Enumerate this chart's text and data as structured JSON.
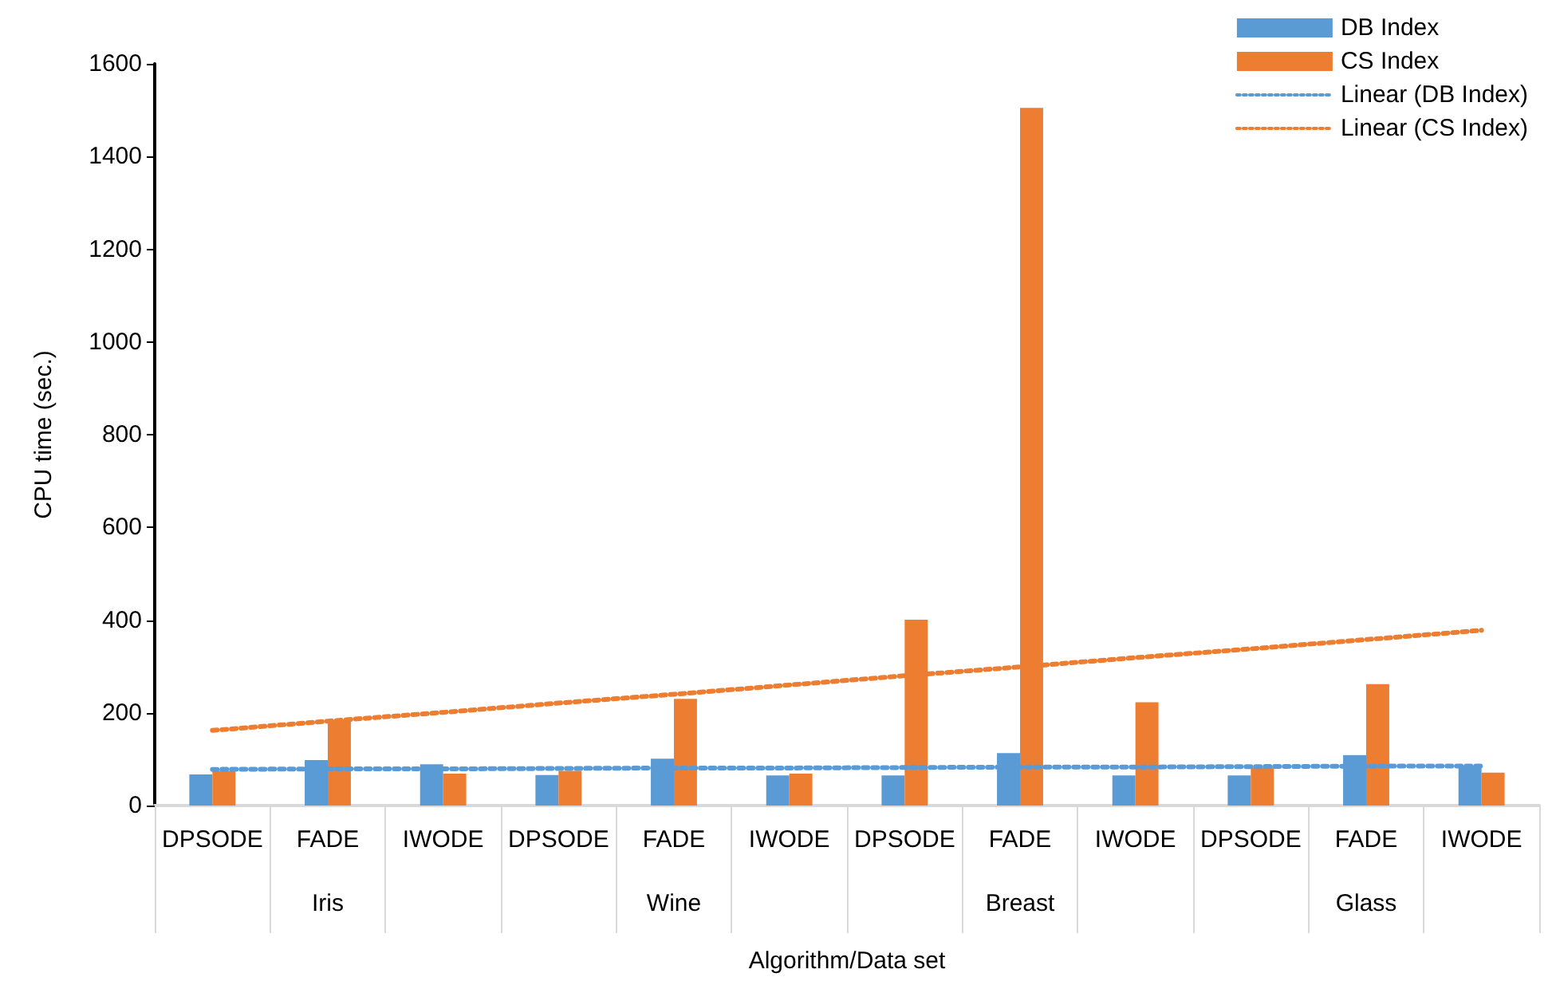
{
  "chart_data": {
    "type": "bar",
    "xlabel": "Algorithm/Data set",
    "ylabel": "CPU time (sec.)",
    "categories": [
      "DPSODE",
      "FADE",
      "IWODE",
      "DPSODE",
      "FADE",
      "IWODE",
      "DPSODE",
      "FADE",
      "IWODE",
      "DPSODE",
      "FADE",
      "IWODE"
    ],
    "annotations": [
      "Iris",
      "Wine",
      "Breast",
      "Glass"
    ],
    "series": [
      {
        "name": "DB Index",
        "color": "#5b9bd5",
        "values": [
          67,
          98,
          89,
          66,
          101,
          65,
          65,
          113,
          65,
          65,
          109,
          86
        ]
      },
      {
        "name": "CS Index",
        "color": "#ed7d31",
        "values": [
          75,
          184,
          69,
          75,
          230,
          69,
          401,
          1505,
          223,
          82,
          262,
          71
        ]
      },
      {
        "name": "Linear (DB Index)",
        "type": "line",
        "line_style": "dotted",
        "color": "#5b9bd5",
        "values": [
          78,
          79,
          79,
          80,
          81,
          81,
          82,
          83,
          83,
          84,
          85,
          85
        ]
      },
      {
        "name": "Linear (CS Index)",
        "type": "line",
        "line_style": "dotted",
        "color": "#ed7d31",
        "values": [
          162,
          182,
          201,
          221,
          240,
          260,
          280,
          299,
          319,
          338,
          358,
          378
        ]
      }
    ],
    "ylim": [
      0,
      1600
    ],
    "yticks": [
      0,
      200,
      400,
      600,
      800,
      {
        "value": 1000,
        "label": "1000"
      },
      {
        "value": 1200,
        "label": "1200"
      },
      {
        "value": 1400,
        "label": "1400"
      },
      {
        "value": 1600,
        "label": "1600"
      }
    ],
    "grid": false,
    "legend": "top right"
  }
}
